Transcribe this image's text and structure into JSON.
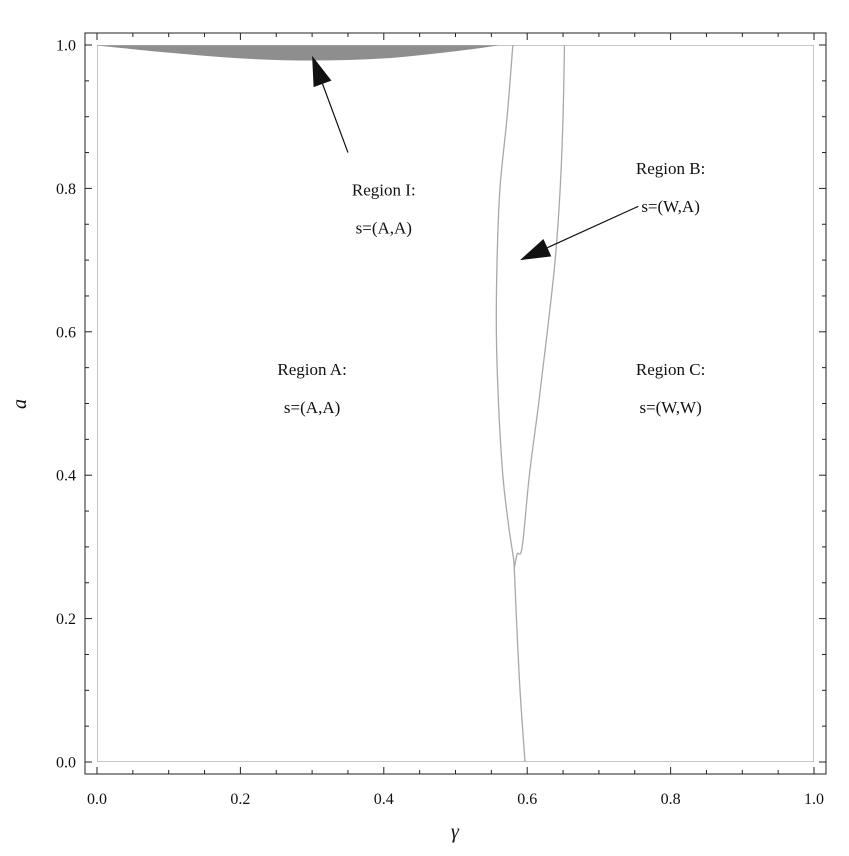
{
  "chart_data": {
    "type": "area",
    "title": "",
    "xlabel": "γ",
    "ylabel": "a",
    "xlim": [
      0,
      1
    ],
    "ylim": [
      0,
      1
    ],
    "grid": false,
    "x_ticks": [
      {
        "value": 0,
        "label": "0.0"
      },
      {
        "value": 0.2,
        "label": "0.2"
      },
      {
        "value": 0.4,
        "label": "0.4"
      },
      {
        "value": 0.6,
        "label": "0.6"
      },
      {
        "value": 0.8,
        "label": "0.8"
      },
      {
        "value": 1.0,
        "label": "1.0"
      }
    ],
    "y_ticks": [
      {
        "value": 0,
        "label": "0.0"
      },
      {
        "value": 0.2,
        "label": "0.2"
      },
      {
        "value": 0.4,
        "label": "0.4"
      },
      {
        "value": 0.6,
        "label": "0.6"
      },
      {
        "value": 0.8,
        "label": "0.8"
      },
      {
        "value": 1.0,
        "label": "1.0"
      }
    ],
    "minor_tick_step": 0.05,
    "colors": {
      "boundary": "#a8a8a8",
      "region_i_fill": "#8e8e8e",
      "frame": "#222222",
      "arrow": "#111111"
    },
    "shaded_region": {
      "name": "Region I",
      "upper": [
        [
          0,
          1.0
        ],
        [
          0.56,
          1.0
        ]
      ],
      "lower": [
        [
          0,
          1.0
        ],
        [
          0.1,
          0.99
        ],
        [
          0.2,
          0.982
        ],
        [
          0.3,
          0.979
        ],
        [
          0.4,
          0.982
        ],
        [
          0.5,
          0.992
        ],
        [
          0.56,
          1.0
        ]
      ]
    },
    "boundaries": [
      {
        "name": "left-boundary",
        "points": [
          [
            0.58,
            1.0
          ],
          [
            0.572,
            0.9
          ],
          [
            0.562,
            0.8
          ],
          [
            0.558,
            0.7
          ],
          [
            0.557,
            0.6
          ],
          [
            0.56,
            0.5
          ],
          [
            0.566,
            0.4
          ],
          [
            0.574,
            0.33
          ],
          [
            0.58,
            0.29
          ],
          [
            0.582,
            0.27
          ],
          [
            0.585,
            0.2
          ],
          [
            0.59,
            0.1
          ],
          [
            0.597,
            0.0
          ]
        ]
      },
      {
        "name": "right-boundary",
        "points": [
          [
            0.652,
            1.0
          ],
          [
            0.65,
            0.9
          ],
          [
            0.646,
            0.8
          ],
          [
            0.639,
            0.7
          ],
          [
            0.628,
            0.6
          ],
          [
            0.616,
            0.5
          ],
          [
            0.603,
            0.4
          ],
          [
            0.593,
            0.3
          ],
          [
            0.586,
            0.29
          ],
          [
            0.582,
            0.27
          ]
        ]
      }
    ],
    "annotations": [
      {
        "name": "region-i",
        "lines": [
          "Region I:",
          "s=(A,A)"
        ],
        "x": 0.4,
        "y": 0.79
      },
      {
        "name": "region-a",
        "lines": [
          "Region A:",
          "s=(A,A)"
        ],
        "x": 0.3,
        "y": 0.54
      },
      {
        "name": "region-b",
        "lines": [
          "Region B:",
          "s=(W,A)"
        ],
        "x": 0.8,
        "y": 0.82
      },
      {
        "name": "region-c",
        "lines": [
          "Region C:",
          "s=(W,W)"
        ],
        "x": 0.8,
        "y": 0.54
      }
    ],
    "arrows": [
      {
        "name": "region-i-arrow",
        "from": [
          0.35,
          0.85
        ],
        "to": [
          0.3,
          0.985
        ]
      },
      {
        "name": "region-b-arrow",
        "from": [
          0.755,
          0.775
        ],
        "to": [
          0.59,
          0.7
        ]
      }
    ]
  }
}
